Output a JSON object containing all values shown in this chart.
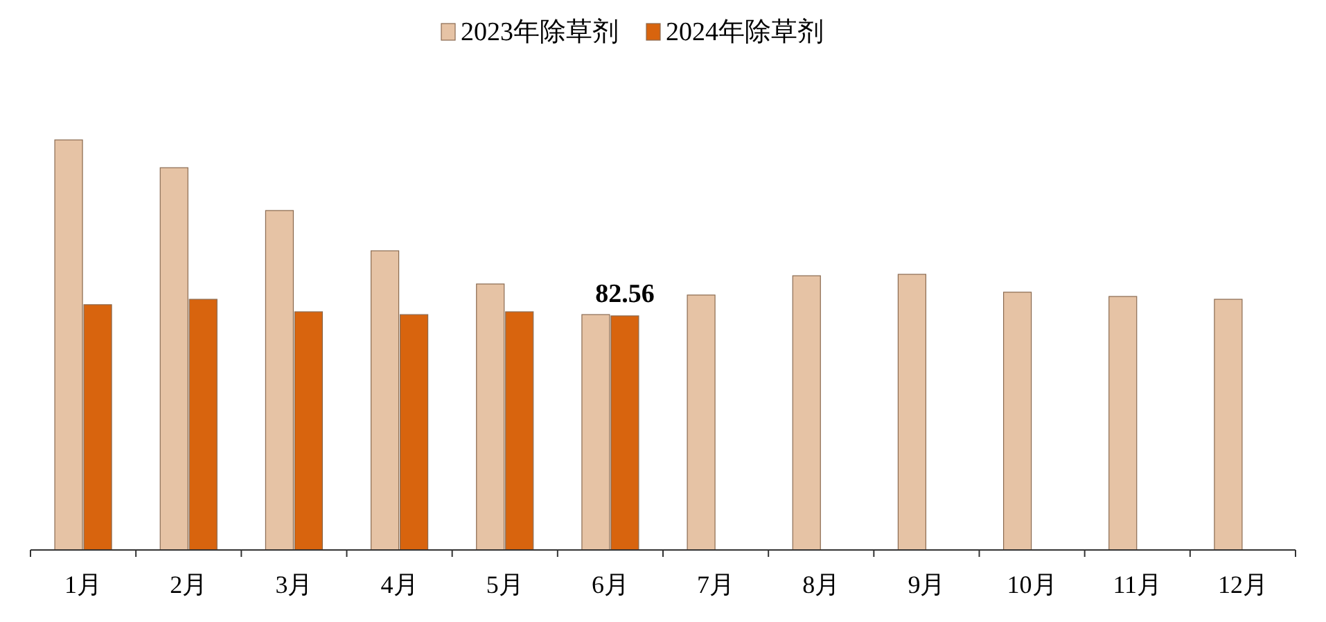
{
  "chart_data": {
    "type": "bar",
    "categories": [
      "1月",
      "2月",
      "3月",
      "4月",
      "5月",
      "6月",
      "7月",
      "8月",
      "9月",
      "10月",
      "11月",
      "12月"
    ],
    "series": [
      {
        "name": "2023年除草剂",
        "color": "#e6c3a5",
        "values": [
          144.6,
          134.8,
          119.7,
          105.5,
          93.8,
          83.0,
          89.9,
          96.7,
          97.2,
          90.9,
          89.4,
          88.4
        ]
      },
      {
        "name": "2024年除草剂",
        "color": "#d8640e",
        "values": [
          86.5,
          88.4,
          84.0,
          83.0,
          84.0,
          82.56,
          null,
          null,
          null,
          null,
          null,
          null
        ],
        "value_labels": [
          null,
          null,
          null,
          null,
          null,
          "82.56",
          null,
          null,
          null,
          null,
          null,
          null
        ]
      }
    ],
    "legend": "top"
  }
}
